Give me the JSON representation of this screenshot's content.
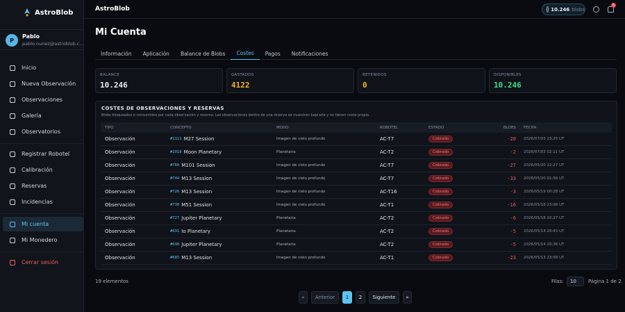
{
  "app": {
    "name": "AstroBlob"
  },
  "sidebar": {
    "user": {
      "initial": "P",
      "name": "Pablo",
      "email": "pablo.nunez@astroblob.c..."
    },
    "groups": [
      [
        "Inicio",
        "Nueva Observación",
        "Observaciones",
        "Galería",
        "Observatorios"
      ],
      [
        "Registrar Robotel",
        "Calibración",
        "Reservas",
        "Incidencias"
      ],
      [
        "Mi cuenta",
        "Mi Monedero"
      ]
    ],
    "active": "Mi cuenta",
    "logout": "Cerrar sesión"
  },
  "topbar": {
    "title": "AstroBlob",
    "balance": "10.246",
    "unit": "blobs",
    "notifications": "5"
  },
  "page": {
    "title": "Mi Cuenta",
    "tabs": [
      "Información",
      "Aplicación",
      "Balance de Blobs",
      "Costes",
      "Pagos",
      "Notificaciones"
    ],
    "active_tab": "Costes"
  },
  "cards": [
    {
      "label": "BALANCE",
      "value": "10.246",
      "color": "#e8ecf2"
    },
    {
      "label": "GASTADOS",
      "value": "4122",
      "color": "#f0b429"
    },
    {
      "label": "RETENIDOS",
      "value": "0",
      "color": "#f0b429"
    },
    {
      "label": "DISPONIBLES",
      "value": "10.246",
      "color": "#3ddc84"
    }
  ],
  "table": {
    "title": "COSTES DE OBSERVACIONES Y RESERVAS",
    "subtitle": "Blobs bloqueados o consumidos por cada observación y reserva. Las observaciones dentro de una reserva se muestran bajo ella y no tienen coste propio.",
    "columns": [
      "TIPO",
      "CONCEPTO",
      "MODO",
      "ROBOTEL",
      "ESTADO",
      "BLOBS",
      "FECHA"
    ],
    "rows": [
      [
        "Observación",
        "#1111",
        "M27 Session",
        "Imagen de cielo profundo",
        "AC-T7",
        "Cobrado",
        "-20",
        "2026/07/03 23:25 UT"
      ],
      [
        "Observación",
        "#1010",
        "Moon Planetary",
        "Planetaria",
        "AC-T2",
        "Cobrado",
        "-2",
        "2026/07/03 02:11 UT"
      ],
      [
        "Observación",
        "#760",
        "M101 Session",
        "Imagen de cielo profundo",
        "AC-T7",
        "Cobrado",
        "-27",
        "2026/05/20 22:27 UT"
      ],
      [
        "Observación",
        "#744",
        "M13 Session",
        "Imagen de cielo profundo",
        "AC-T7",
        "Cobrado",
        "-33",
        "2026/05/20 01:58 UT"
      ],
      [
        "Observación",
        "#726",
        "M13 Session",
        "Imagen de cielo profundo",
        "AC-T16",
        "Cobrado",
        "-3",
        "2026/05/19 00:28 UT"
      ],
      [
        "Observación",
        "#730",
        "M51 Session",
        "Imagen de cielo profundo",
        "AC-T1",
        "Cobrado",
        "-16",
        "2026/05/18 23:08 UT"
      ],
      [
        "Observación",
        "#727",
        "Jupiter Planetary",
        "Planetaria",
        "AC-T2",
        "Cobrado",
        "-6",
        "2026/05/18 20:27 UT"
      ],
      [
        "Observación",
        "#691",
        "Io Planetary",
        "Planetaria",
        "AC-T2",
        "Cobrado",
        "-5",
        "2026/05/14 20:43 UT"
      ],
      [
        "Observación",
        "#690",
        "Jupiter Planetary",
        "Planetaria",
        "AC-T2",
        "Cobrado",
        "-5",
        "2026/05/14 20:36 UT"
      ],
      [
        "Observación",
        "#685",
        "M13 Session",
        "Imagen de cielo profundo",
        "AC-T1",
        "Cobrado",
        "-23",
        "2026/05/13 23:58 UT"
      ]
    ]
  },
  "footer": {
    "count": "19 elementos",
    "rows_label": "Filas:",
    "rows_value": "10",
    "page_info": "Página 1 de 2",
    "pagination": [
      "«",
      "Anterior",
      "1",
      "2",
      "Siguiente",
      "»"
    ],
    "current_page": "1"
  }
}
